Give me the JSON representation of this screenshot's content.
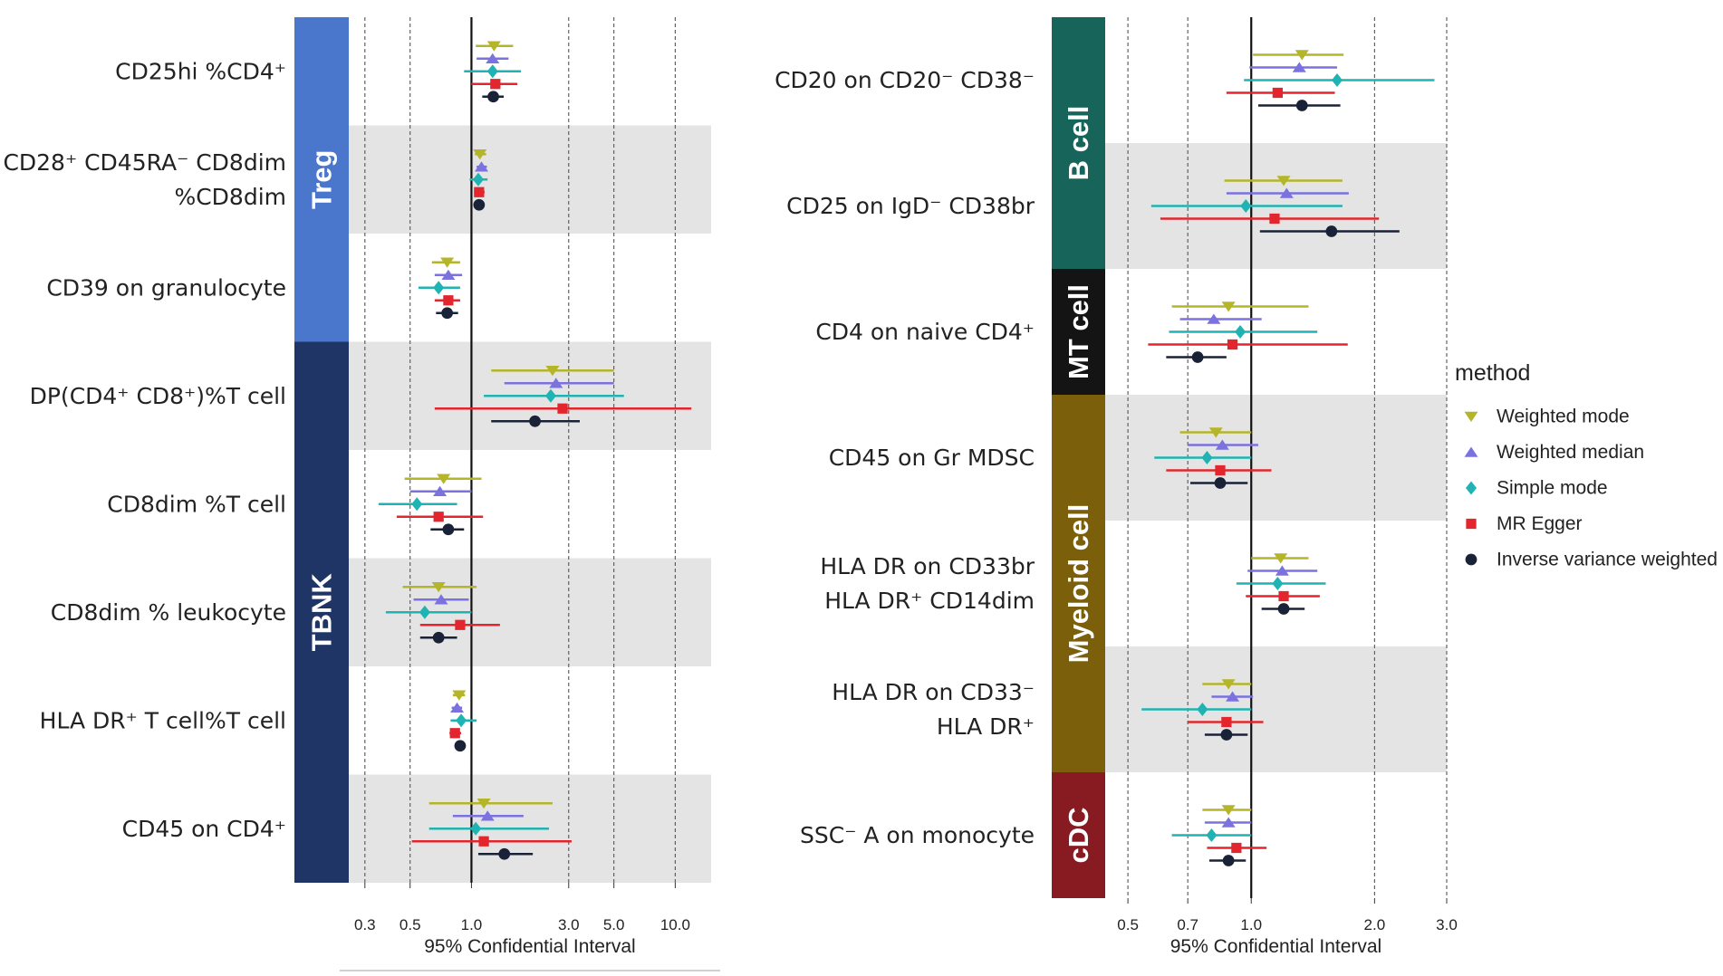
{
  "chart_data": [
    {
      "type": "forest",
      "panel": "left",
      "xscale": "log",
      "xlim": [
        0.25,
        15
      ],
      "ticks": [
        "0.3",
        "0.5",
        "1.0",
        "3.0",
        "5.0",
        "10.0"
      ],
      "tick_values": [
        0.3,
        0.5,
        1.0,
        3.0,
        5.0,
        10.0
      ],
      "xlabel": "95% Confidential Interval",
      "groups": [
        {
          "name": "Treg",
          "color": "#4a76cb",
          "rows": [
            0,
            2
          ]
        },
        {
          "name": "TBNK",
          "color": "#1f3566",
          "rows": [
            3,
            7
          ]
        }
      ],
      "rows": [
        {
          "label": [
            "CD25hi %CD4⁺"
          ],
          "estimates": [
            {
              "method": "Weighted mode",
              "or": 1.29,
              "lo": 1.05,
              "hi": 1.6
            },
            {
              "method": "Weighted median",
              "or": 1.27,
              "lo": 1.06,
              "hi": 1.52
            },
            {
              "method": "Simple mode",
              "or": 1.27,
              "lo": 0.92,
              "hi": 1.75
            },
            {
              "method": "MR Egger",
              "or": 1.31,
              "lo": 1.0,
              "hi": 1.68
            },
            {
              "method": "Inverse variance weighted",
              "or": 1.28,
              "lo": 1.13,
              "hi": 1.44
            }
          ]
        },
        {
          "label": [
            "CD28⁺ CD45RA⁻ CD8dim",
            "%CD8dim"
          ],
          "estimates": [
            {
              "method": "Weighted mode",
              "or": 1.1,
              "lo": 1.04,
              "hi": 1.18
            },
            {
              "method": "Weighted median",
              "or": 1.12,
              "lo": 1.06,
              "hi": 1.19
            },
            {
              "method": "Simple mode",
              "or": 1.08,
              "lo": 0.98,
              "hi": 1.2
            },
            {
              "method": "MR Egger",
              "or": 1.09,
              "lo": 1.03,
              "hi": 1.16
            },
            {
              "method": "Inverse variance weighted",
              "or": 1.09,
              "lo": 1.05,
              "hi": 1.13
            }
          ]
        },
        {
          "label": [
            "CD39 on granulocyte"
          ],
          "estimates": [
            {
              "method": "Weighted mode",
              "or": 0.76,
              "lo": 0.64,
              "hi": 0.88
            },
            {
              "method": "Weighted median",
              "or": 0.77,
              "lo": 0.66,
              "hi": 0.9
            },
            {
              "method": "Simple mode",
              "or": 0.69,
              "lo": 0.55,
              "hi": 0.88
            },
            {
              "method": "MR Egger",
              "or": 0.77,
              "lo": 0.66,
              "hi": 0.88
            },
            {
              "method": "Inverse variance weighted",
              "or": 0.76,
              "lo": 0.67,
              "hi": 0.86
            }
          ]
        },
        {
          "label": [
            "DP(CD4⁺ CD8⁺)%T cell"
          ],
          "estimates": [
            {
              "method": "Weighted mode",
              "or": 2.5,
              "lo": 1.25,
              "hi": 5.0
            },
            {
              "method": "Weighted median",
              "or": 2.6,
              "lo": 1.45,
              "hi": 5.0
            },
            {
              "method": "Simple mode",
              "or": 2.45,
              "lo": 1.15,
              "hi": 5.6
            },
            {
              "method": "MR Egger",
              "or": 2.8,
              "lo": 0.66,
              "hi": 12.0
            },
            {
              "method": "Inverse variance weighted",
              "or": 2.05,
              "lo": 1.25,
              "hi": 3.4
            }
          ]
        },
        {
          "label": [
            "CD8dim %T cell"
          ],
          "estimates": [
            {
              "method": "Weighted mode",
              "or": 0.73,
              "lo": 0.47,
              "hi": 1.12
            },
            {
              "method": "Weighted median",
              "or": 0.7,
              "lo": 0.5,
              "hi": 1.0
            },
            {
              "method": "Simple mode",
              "or": 0.54,
              "lo": 0.35,
              "hi": 0.85
            },
            {
              "method": "MR Egger",
              "or": 0.69,
              "lo": 0.43,
              "hi": 1.14
            },
            {
              "method": "Inverse variance weighted",
              "or": 0.77,
              "lo": 0.63,
              "hi": 0.92
            }
          ]
        },
        {
          "label": [
            "CD8dim % leukocyte"
          ],
          "estimates": [
            {
              "method": "Weighted mode",
              "or": 0.69,
              "lo": 0.46,
              "hi": 1.06
            },
            {
              "method": "Weighted median",
              "or": 0.71,
              "lo": 0.52,
              "hi": 0.97
            },
            {
              "method": "Simple mode",
              "or": 0.59,
              "lo": 0.38,
              "hi": 1.0
            },
            {
              "method": "MR Egger",
              "or": 0.88,
              "lo": 0.56,
              "hi": 1.38
            },
            {
              "method": "Inverse variance weighted",
              "or": 0.69,
              "lo": 0.56,
              "hi": 0.85
            }
          ]
        },
        {
          "label": [
            "HLA DR⁺ T cell%T cell"
          ],
          "estimates": [
            {
              "method": "Weighted mode",
              "or": 0.87,
              "lo": 0.81,
              "hi": 0.93
            },
            {
              "method": "Weighted median",
              "or": 0.85,
              "lo": 0.8,
              "hi": 0.9
            },
            {
              "method": "Simple mode",
              "or": 0.89,
              "lo": 0.79,
              "hi": 1.06
            },
            {
              "method": "MR Egger",
              "or": 0.83,
              "lo": 0.78,
              "hi": 0.89
            },
            {
              "method": "Inverse variance weighted",
              "or": 0.88,
              "lo": 0.84,
              "hi": 0.93
            }
          ]
        },
        {
          "label": [
            "CD45 on CD4⁺"
          ],
          "estimates": [
            {
              "method": "Weighted mode",
              "or": 1.15,
              "lo": 0.62,
              "hi": 2.5
            },
            {
              "method": "Weighted median",
              "or": 1.2,
              "lo": 0.81,
              "hi": 1.8
            },
            {
              "method": "Simple mode",
              "or": 1.05,
              "lo": 0.62,
              "hi": 2.4
            },
            {
              "method": "MR Egger",
              "or": 1.15,
              "lo": 0.51,
              "hi": 3.1
            },
            {
              "method": "Inverse variance weighted",
              "or": 1.45,
              "lo": 1.08,
              "hi": 2.0
            }
          ]
        }
      ]
    },
    {
      "type": "forest",
      "panel": "right",
      "xscale": "log",
      "xlim": [
        0.44,
        3.0
      ],
      "ticks": [
        "0.5",
        "0.7",
        "1.0",
        "2.0",
        "3.0"
      ],
      "tick_values": [
        0.5,
        0.7,
        1.0,
        2.0,
        3.0
      ],
      "xlabel": "95% Confidential Interval",
      "groups": [
        {
          "name": "B cell",
          "color": "#17645a",
          "rows": [
            0,
            1
          ]
        },
        {
          "name": "MT cell",
          "color": "#141414",
          "rows": [
            2,
            2
          ]
        },
        {
          "name": "Myeloid cell",
          "color": "#7b5f0a",
          "rows": [
            3,
            5
          ]
        },
        {
          "name": "cDC",
          "color": "#881a22",
          "rows": [
            6,
            6
          ]
        }
      ],
      "rows": [
        {
          "label": [
            "CD20 on CD20⁻ CD38⁻"
          ],
          "estimates": [
            {
              "method": "Weighted mode",
              "or": 1.33,
              "lo": 1.01,
              "hi": 1.68
            },
            {
              "method": "Weighted median",
              "or": 1.31,
              "lo": 0.99,
              "hi": 1.62
            },
            {
              "method": "Simple mode",
              "or": 1.62,
              "lo": 0.96,
              "hi": 2.8
            },
            {
              "method": "MR Egger",
              "or": 1.16,
              "lo": 0.87,
              "hi": 1.6
            },
            {
              "method": "Inverse variance weighted",
              "or": 1.33,
              "lo": 1.04,
              "hi": 1.65
            }
          ]
        },
        {
          "label": [
            "CD25 on IgD⁻ CD38br"
          ],
          "estimates": [
            {
              "method": "Weighted mode",
              "or": 1.2,
              "lo": 0.86,
              "hi": 1.67
            },
            {
              "method": "Weighted median",
              "or": 1.22,
              "lo": 0.87,
              "hi": 1.73
            },
            {
              "method": "Simple mode",
              "or": 0.97,
              "lo": 0.57,
              "hi": 1.67
            },
            {
              "method": "MR Egger",
              "or": 1.14,
              "lo": 0.6,
              "hi": 2.05
            },
            {
              "method": "Inverse variance weighted",
              "or": 1.57,
              "lo": 1.05,
              "hi": 2.3
            }
          ]
        },
        {
          "label": [
            "CD4 on naive CD4⁺"
          ],
          "estimates": [
            {
              "method": "Weighted mode",
              "or": 0.88,
              "lo": 0.64,
              "hi": 1.38
            },
            {
              "method": "Weighted median",
              "or": 0.81,
              "lo": 0.67,
              "hi": 1.06
            },
            {
              "method": "Simple mode",
              "or": 0.94,
              "lo": 0.63,
              "hi": 1.45
            },
            {
              "method": "MR Egger",
              "or": 0.9,
              "lo": 0.56,
              "hi": 1.72
            },
            {
              "method": "Inverse variance weighted",
              "or": 0.74,
              "lo": 0.62,
              "hi": 0.87
            }
          ]
        },
        {
          "label": [
            "CD45 on Gr MDSC"
          ],
          "estimates": [
            {
              "method": "Weighted mode",
              "or": 0.82,
              "lo": 0.67,
              "hi": 1.0
            },
            {
              "method": "Weighted median",
              "or": 0.85,
              "lo": 0.7,
              "hi": 1.04
            },
            {
              "method": "Simple mode",
              "or": 0.78,
              "lo": 0.58,
              "hi": 1.0
            },
            {
              "method": "MR Egger",
              "or": 0.84,
              "lo": 0.62,
              "hi": 1.12
            },
            {
              "method": "Inverse variance weighted",
              "or": 0.84,
              "lo": 0.71,
              "hi": 0.98
            }
          ]
        },
        {
          "label": [
            "HLA DR on CD33br",
            "HLA DR⁺ CD14dim"
          ],
          "estimates": [
            {
              "method": "Weighted mode",
              "or": 1.18,
              "lo": 1.0,
              "hi": 1.38
            },
            {
              "method": "Weighted median",
              "or": 1.19,
              "lo": 0.98,
              "hi": 1.45
            },
            {
              "method": "Simple mode",
              "or": 1.16,
              "lo": 0.92,
              "hi": 1.52
            },
            {
              "method": "MR Egger",
              "or": 1.2,
              "lo": 0.97,
              "hi": 1.47
            },
            {
              "method": "Inverse variance weighted",
              "or": 1.2,
              "lo": 1.06,
              "hi": 1.35
            }
          ]
        },
        {
          "label": [
            "HLA DR on CD33⁻",
            "HLA DR⁺"
          ],
          "estimates": [
            {
              "method": "Weighted mode",
              "or": 0.88,
              "lo": 0.76,
              "hi": 1.0
            },
            {
              "method": "Weighted median",
              "or": 0.9,
              "lo": 0.8,
              "hi": 1.01
            },
            {
              "method": "Simple mode",
              "or": 0.76,
              "lo": 0.54,
              "hi": 1.0
            },
            {
              "method": "MR Egger",
              "or": 0.87,
              "lo": 0.7,
              "hi": 1.07
            },
            {
              "method": "Inverse variance weighted",
              "or": 0.87,
              "lo": 0.77,
              "hi": 0.98
            }
          ]
        },
        {
          "label": [
            "SSC⁻ A on monocyte"
          ],
          "estimates": [
            {
              "method": "Weighted mode",
              "or": 0.88,
              "lo": 0.76,
              "hi": 1.0
            },
            {
              "method": "Weighted median",
              "or": 0.88,
              "lo": 0.77,
              "hi": 1.0
            },
            {
              "method": "Simple mode",
              "or": 0.8,
              "lo": 0.64,
              "hi": 1.0
            },
            {
              "method": "MR Egger",
              "or": 0.92,
              "lo": 0.78,
              "hi": 1.09
            },
            {
              "method": "Inverse variance weighted",
              "or": 0.88,
              "lo": 0.79,
              "hi": 0.97
            }
          ]
        }
      ]
    }
  ],
  "legend": {
    "title": "method",
    "items": [
      {
        "label": "Weighted mode",
        "color": "#b5b52a",
        "shape": "triangle-down"
      },
      {
        "label": "Weighted median",
        "color": "#7b72e0",
        "shape": "triangle-up"
      },
      {
        "label": "Simple mode",
        "color": "#1fb3b3",
        "shape": "diamond"
      },
      {
        "label": "MR Egger",
        "color": "#e3262d",
        "shape": "square"
      },
      {
        "label": "Inverse variance weighted",
        "color": "#1a2238",
        "shape": "circle"
      }
    ]
  }
}
